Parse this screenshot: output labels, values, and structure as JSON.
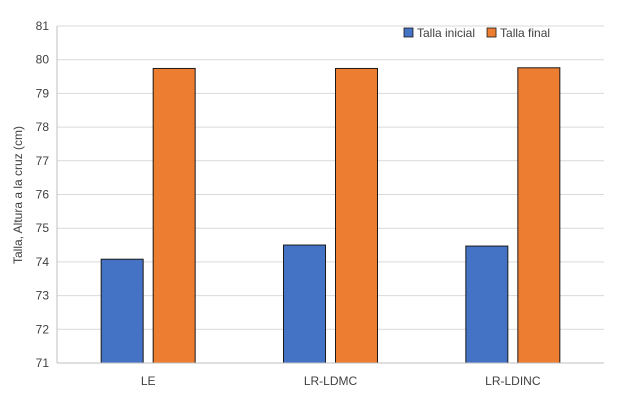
{
  "chart_data": {
    "type": "bar",
    "title": "",
    "xlabel": "",
    "ylabel": "Talla, Altura a la cruz (cm)",
    "ylim": [
      71,
      81
    ],
    "yticks": [
      71,
      72,
      73,
      74,
      75,
      76,
      77,
      78,
      79,
      80,
      81
    ],
    "grid": true,
    "legend_position": "top-right",
    "categories": [
      "LE",
      "LR-LDMC",
      "LR-LDINC"
    ],
    "series": [
      {
        "name": "Talla inicial",
        "color": "#4472C4",
        "values": [
          74.08,
          74.5,
          74.47
        ]
      },
      {
        "name": "Talla final",
        "color": "#ED7D31",
        "values": [
          79.74,
          79.74,
          79.76
        ]
      }
    ]
  }
}
